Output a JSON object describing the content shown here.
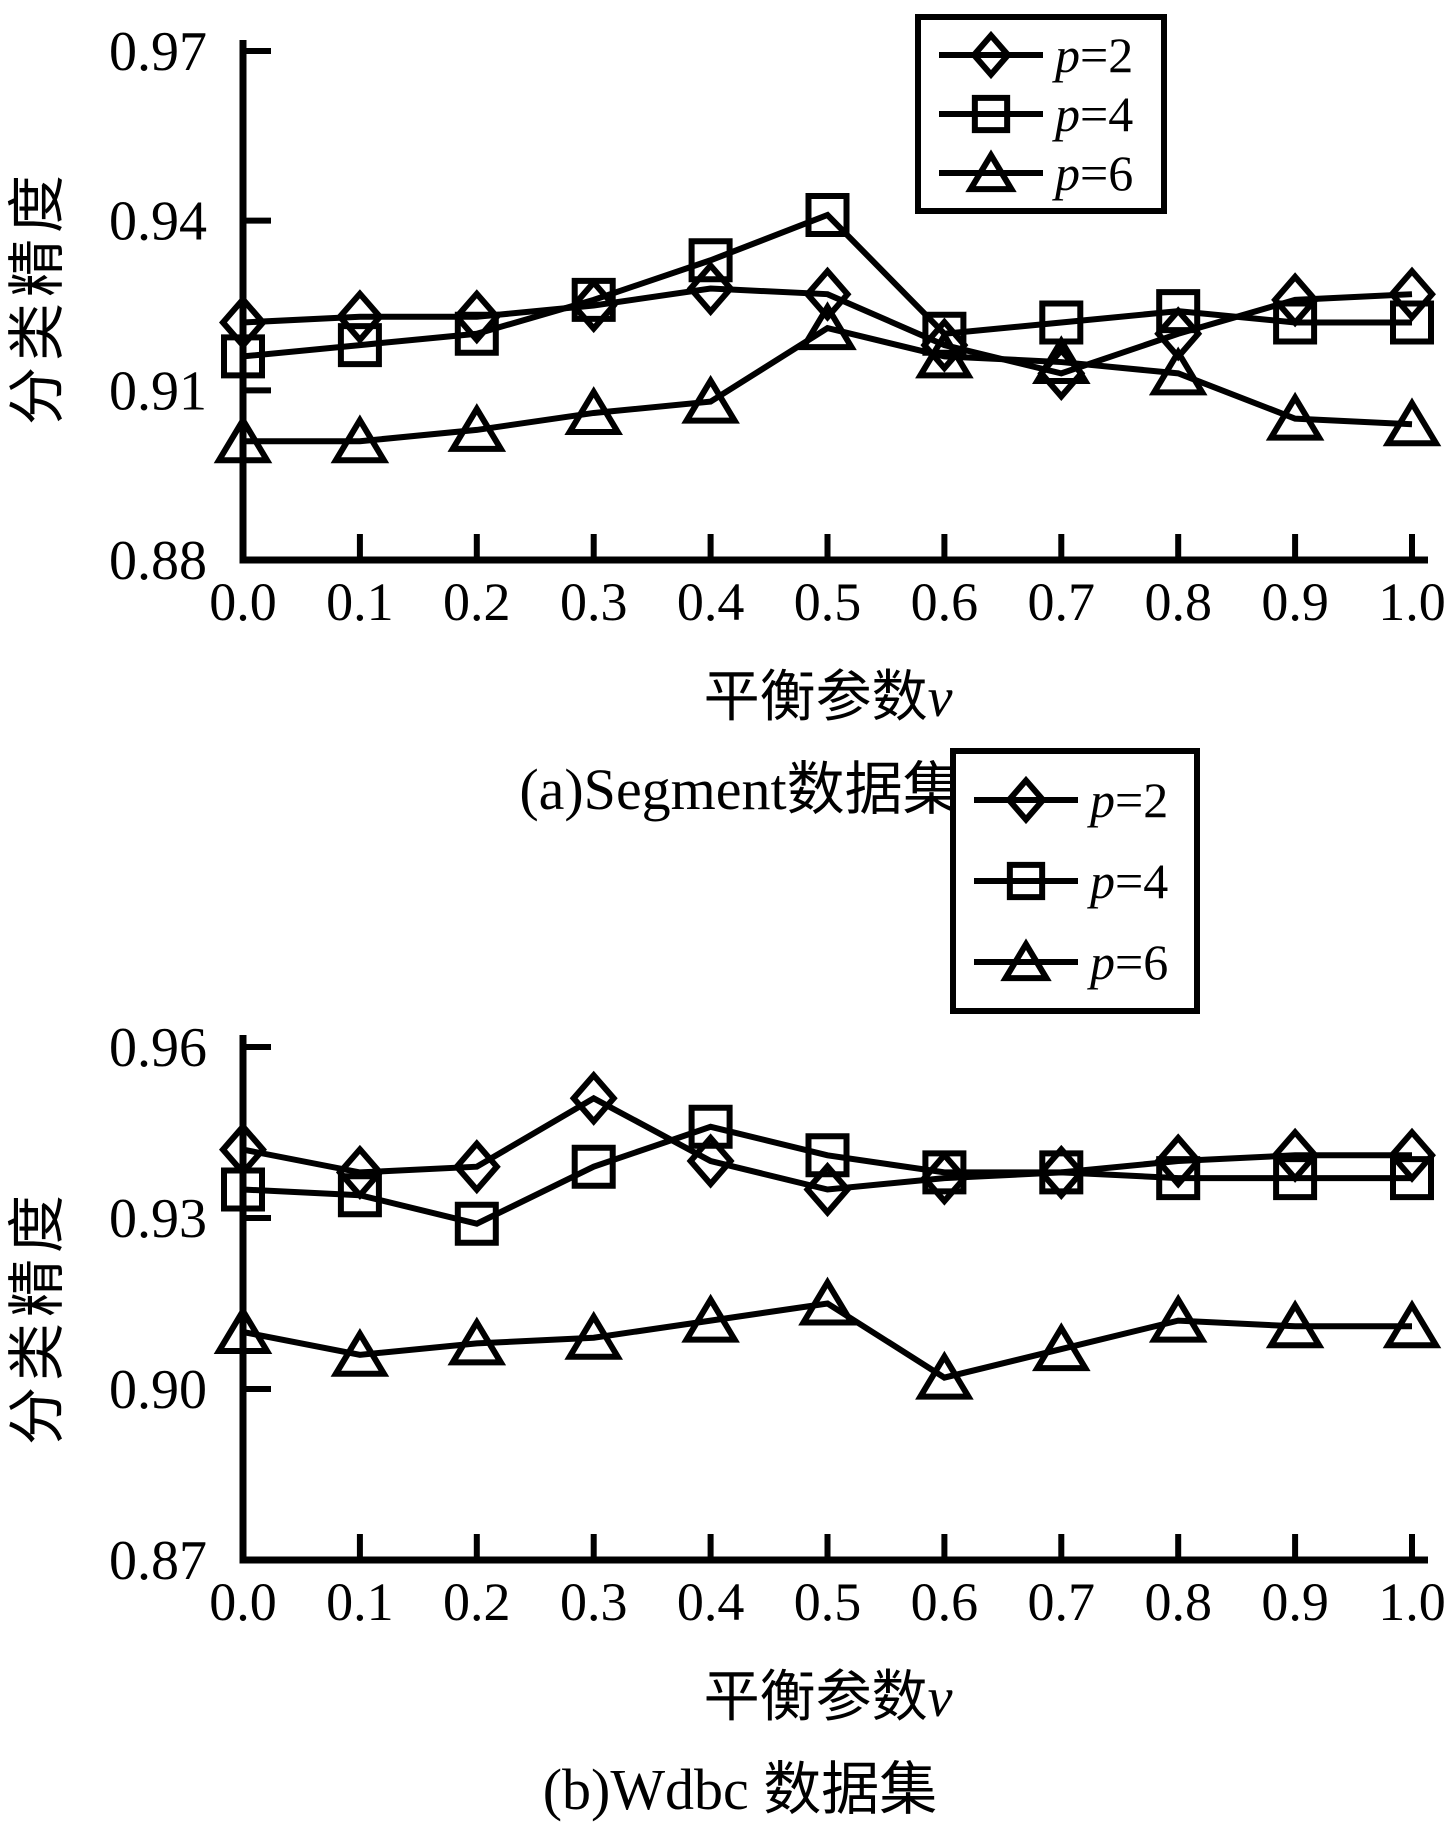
{
  "figure": {
    "background": "#ffffff",
    "ink": "#000000"
  },
  "chart_data": [
    {
      "type": "line",
      "title": "(a)Segment数据集",
      "xlabel": "平衡参数v",
      "xlabel_text": "平衡参数",
      "xlabel_var": "v",
      "ylabel": "分类精度",
      "x": [
        0.0,
        0.1,
        0.2,
        0.3,
        0.4,
        0.5,
        0.6,
        0.7,
        0.8,
        0.9,
        1.0
      ],
      "xtick_labels": [
        "0.0",
        "0.1",
        "0.2",
        "0.3",
        "0.4",
        "0.5",
        "0.6",
        "0.7",
        "0.8",
        "0.9",
        "1.0"
      ],
      "yticks": [
        0.88,
        0.91,
        0.94,
        0.97
      ],
      "ytick_labels": [
        "0.88",
        "0.91",
        "0.94",
        "0.97"
      ],
      "ylim": [
        0.88,
        0.97
      ],
      "grid": false,
      "legend_position": "top-right",
      "series": [
        {
          "name": "p=2",
          "label_var": "p",
          "label_rest": "=2",
          "marker": "diamond",
          "values": [
            0.922,
            0.923,
            0.923,
            0.925,
            0.928,
            0.927,
            0.918,
            0.913,
            0.92,
            0.926,
            0.927
          ]
        },
        {
          "name": "p=4",
          "label_var": "p",
          "label_rest": "=4",
          "marker": "square",
          "values": [
            0.916,
            0.918,
            0.92,
            0.926,
            0.933,
            0.941,
            0.92,
            0.922,
            0.924,
            0.922,
            0.922
          ]
        },
        {
          "name": "p=6",
          "label_var": "p",
          "label_rest": "=6",
          "marker": "triangle",
          "values": [
            0.901,
            0.901,
            0.903,
            0.906,
            0.908,
            0.921,
            0.916,
            0.915,
            0.913,
            0.905,
            0.904
          ]
        }
      ]
    },
    {
      "type": "line",
      "title": "(b)Wdbc 数据集",
      "xlabel": "平衡参数v",
      "xlabel_text": "平衡参数",
      "xlabel_var": "v",
      "ylabel": "分类精度",
      "x": [
        0.0,
        0.1,
        0.2,
        0.3,
        0.4,
        0.5,
        0.6,
        0.7,
        0.8,
        0.9,
        1.0
      ],
      "xtick_labels": [
        "0.0",
        "0.1",
        "0.2",
        "0.3",
        "0.4",
        "0.5",
        "0.6",
        "0.7",
        "0.8",
        "0.9",
        "1.0"
      ],
      "yticks": [
        0.87,
        0.9,
        0.93,
        0.96
      ],
      "ytick_labels": [
        "0.87",
        "0.90",
        "0.93",
        "0.96"
      ],
      "ylim": [
        0.87,
        0.96
      ],
      "grid": false,
      "legend_position": "top-right",
      "series": [
        {
          "name": "p=2",
          "label_var": "p",
          "label_rest": "=2",
          "marker": "diamond",
          "values": [
            0.942,
            0.938,
            0.939,
            0.951,
            0.94,
            0.935,
            0.937,
            0.938,
            0.94,
            0.941,
            0.941
          ]
        },
        {
          "name": "p=4",
          "label_var": "p",
          "label_rest": "=4",
          "marker": "square",
          "values": [
            0.935,
            0.934,
            0.929,
            0.939,
            0.946,
            0.941,
            0.938,
            0.938,
            0.937,
            0.937,
            0.937
          ]
        },
        {
          "name": "p=6",
          "label_var": "p",
          "label_rest": "=6",
          "marker": "triangle",
          "values": [
            0.91,
            0.906,
            0.908,
            0.909,
            0.912,
            0.915,
            0.902,
            0.907,
            0.912,
            0.911,
            0.911
          ]
        }
      ]
    }
  ]
}
